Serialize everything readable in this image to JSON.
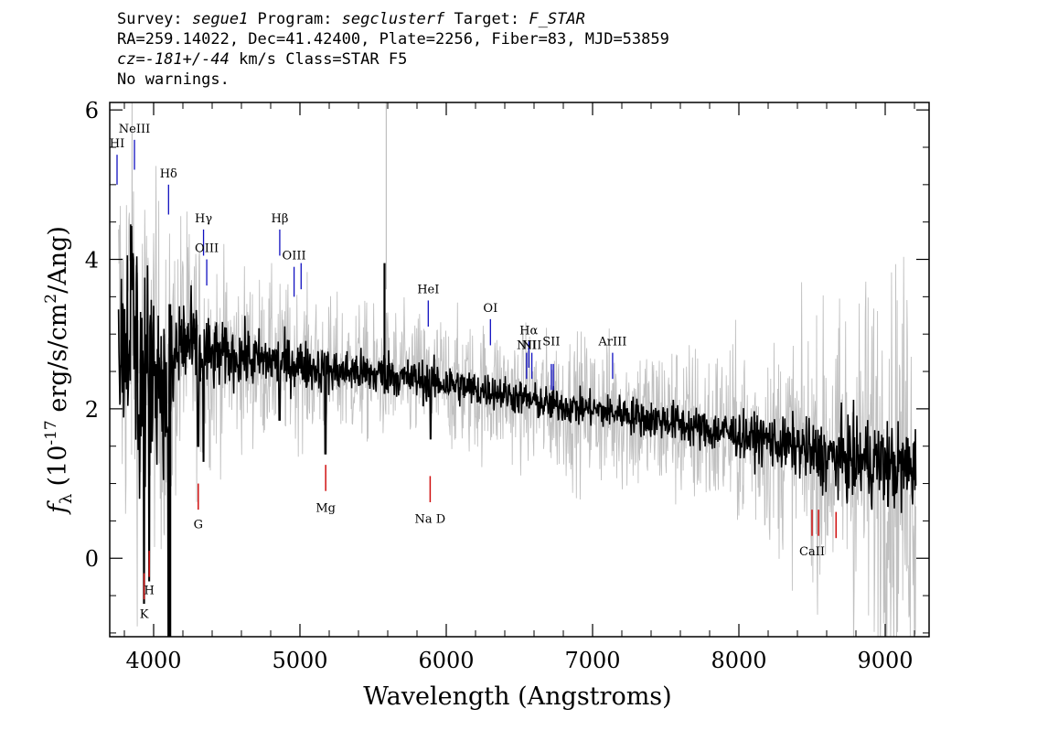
{
  "header": {
    "line1": {
      "survey_label": "Survey: ",
      "survey": "segue1",
      "program_label": " Program: ",
      "program": "segclusterf",
      "target_label": " Target: ",
      "target": "F_STAR"
    },
    "line2": "RA=259.14022, Dec=41.42400, Plate=2256, Fiber=83, MJD=53859",
    "line3": {
      "cz_label": "cz=",
      "cz_value": "-181+/-44",
      "cz_rest": " km/s Class=STAR F5"
    },
    "line4": "No warnings."
  },
  "chart_data": {
    "type": "line",
    "title": "",
    "xlabel": "Wavelength (Angstroms)",
    "ylabel": "f_λ (10^-17 erg/s/cm^2/Ang)",
    "ylabel_parts": {
      "symbol": "f",
      "subscript": "λ",
      "pre": "(10",
      "exp1": "-17",
      "mid": " erg/s/cm",
      "exp2": "2",
      "post": "/Ang)"
    },
    "xlim": [
      3700,
      9300
    ],
    "ylim": [
      -1.05,
      6.1
    ],
    "x_ticks": [
      4000,
      5000,
      6000,
      7000,
      8000,
      9000
    ],
    "x_tick_labels": [
      "4000",
      "5000",
      "6000",
      "7000",
      "8000",
      "9000"
    ],
    "y_ticks": [
      0,
      2,
      4,
      6
    ],
    "y_tick_labels": [
      "0",
      "2",
      "4",
      "6"
    ],
    "colors": {
      "flux": "#000000",
      "error_band": "#c0c0c0",
      "emission_marker": "#1010c0",
      "absorption_marker": "#d01010"
    },
    "series": [
      {
        "name": "flux",
        "x": [
          3800,
          3850,
          3900,
          3950,
          4000,
          4050,
          4100,
          4150,
          4200,
          4300,
          4400,
          4500,
          4600,
          4700,
          4800,
          4900,
          5000,
          5100,
          5200,
          5300,
          5400,
          5500,
          5600,
          5700,
          5800,
          5900,
          6000,
          6100,
          6200,
          6300,
          6400,
          6500,
          6600,
          6700,
          6800,
          6900,
          7000,
          7100,
          7200,
          7300,
          7400,
          7500,
          7600,
          7700,
          7800,
          7900,
          8000,
          8100,
          8200,
          8300,
          8400,
          8500,
          8600,
          8700,
          8800,
          8900,
          9000,
          9100,
          9200
        ],
        "y": [
          2.9,
          3.4,
          2.4,
          2.6,
          2.7,
          2.4,
          2.0,
          2.7,
          2.9,
          2.75,
          2.7,
          2.7,
          2.7,
          2.65,
          2.65,
          2.6,
          2.6,
          2.55,
          2.5,
          2.5,
          2.5,
          2.45,
          2.5,
          2.4,
          2.4,
          2.35,
          2.35,
          2.3,
          2.25,
          2.25,
          2.2,
          2.15,
          2.1,
          2.05,
          2.05,
          2.0,
          2.0,
          1.95,
          1.95,
          1.9,
          1.85,
          1.85,
          1.8,
          1.75,
          1.7,
          1.7,
          1.65,
          1.6,
          1.6,
          1.5,
          1.5,
          1.4,
          1.35,
          1.35,
          1.3,
          1.3,
          1.25,
          1.2,
          1.2
        ],
        "noise": [
          0.6,
          0.8,
          1.0,
          0.8,
          0.6,
          0.5,
          0.5,
          0.45,
          0.4,
          0.3,
          0.25,
          0.2,
          0.2,
          0.2,
          0.18,
          0.18,
          0.17,
          0.16,
          0.15,
          0.15,
          0.15,
          0.15,
          0.15,
          0.14,
          0.14,
          0.14,
          0.14,
          0.13,
          0.13,
          0.12,
          0.12,
          0.12,
          0.12,
          0.12,
          0.12,
          0.12,
          0.12,
          0.12,
          0.12,
          0.13,
          0.13,
          0.13,
          0.14,
          0.14,
          0.14,
          0.15,
          0.15,
          0.16,
          0.17,
          0.18,
          0.2,
          0.22,
          0.24,
          0.26,
          0.28,
          0.3,
          0.3,
          0.3,
          0.3
        ]
      },
      {
        "name": "error",
        "x": [
          3800,
          4000,
          4200,
          4500,
          5000,
          5500,
          6000,
          6500,
          7000,
          7500,
          8000,
          8500,
          8800,
          9000,
          9200
        ],
        "y": [
          1.5,
          1.2,
          0.9,
          0.6,
          0.5,
          0.45,
          0.45,
          0.45,
          0.5,
          0.55,
          0.6,
          0.8,
          1.2,
          1.3,
          1.4
        ]
      }
    ],
    "absorption_features": [
      {
        "x": 4101,
        "y": -1.05
      },
      {
        "x": 3934,
        "y": -0.6
      },
      {
        "x": 3969,
        "y": -0.3
      },
      {
        "x": 4304,
        "y": 1.5
      },
      {
        "x": 5175,
        "y": 1.4
      },
      {
        "x": 5893,
        "y": 1.6
      },
      {
        "x": 4340,
        "y": 1.3
      },
      {
        "x": 4861,
        "y": 1.85
      }
    ],
    "emission_lines": [
      {
        "label": "HI",
        "x": 3750,
        "y": 5.4,
        "ymin": 5.0,
        "label_y": 5.45
      },
      {
        "label": "NeIII",
        "x": 3869,
        "y": 5.6,
        "ymin": 5.2,
        "label_y": 5.65
      },
      {
        "label": "Hδ",
        "x": 4102,
        "y": 5.0,
        "ymin": 4.6,
        "label_y": 5.05
      },
      {
        "label": "Hγ",
        "x": 4341,
        "y": 4.4,
        "ymin": 4.05,
        "label_y": 4.45
      },
      {
        "label": "OIII",
        "x": 4363,
        "y": 4.0,
        "ymin": 3.65,
        "label_y": 4.05
      },
      {
        "label": "Hβ",
        "x": 4862,
        "y": 4.4,
        "ymin": 4.05,
        "label_y": 4.45
      },
      {
        "label": "OIII",
        "x": 4960,
        "y": 3.9,
        "ymin": 3.5,
        "label_y": 3.95
      },
      {
        "label": "",
        "x": 5008,
        "y": 3.95,
        "ymin": 3.6,
        "label_y": 3.95
      },
      {
        "label": "HeI",
        "x": 5877,
        "y": 3.45,
        "ymin": 3.1,
        "label_y": 3.5
      },
      {
        "label": "OI",
        "x": 6302,
        "y": 3.2,
        "ymin": 2.85,
        "label_y": 3.25
      },
      {
        "label": "NII",
        "x": 6549,
        "y": 2.75,
        "ymin": 2.4,
        "label_y": 2.75
      },
      {
        "label": "Hα",
        "x": 6564,
        "y": 2.9,
        "ymin": 2.55,
        "label_y": 2.95
      },
      {
        "label": "NII",
        "x": 6585,
        "y": 2.75,
        "ymin": 2.4,
        "label_y": 2.75
      },
      {
        "label": "SII",
        "x": 6718,
        "y": 2.6,
        "ymin": 2.25,
        "label_y": 2.8
      },
      {
        "label": "",
        "x": 6732,
        "y": 2.6,
        "ymin": 2.25,
        "label_y": 2.6
      },
      {
        "label": "ArIII",
        "x": 7137,
        "y": 2.75,
        "ymin": 2.4,
        "label_y": 2.8
      }
    ],
    "absorption_lines": [
      {
        "label": "K",
        "x": 3935,
        "y": -0.2,
        "ymin": -0.55,
        "label_y": -0.7
      },
      {
        "label": "H",
        "x": 3970,
        "y": 0.1,
        "ymin": -0.25,
        "label_y": -0.38
      },
      {
        "label": "G",
        "x": 4305,
        "y": 1.0,
        "ymin": 0.65,
        "label_y": 0.5
      },
      {
        "label": "Mg",
        "x": 5176,
        "y": 1.25,
        "ymin": 0.9,
        "label_y": 0.72
      },
      {
        "label": "Na D",
        "x": 5890,
        "y": 1.1,
        "ymin": 0.75,
        "label_y": 0.57
      },
      {
        "label": "CaII",
        "x": 8500,
        "y": 0.65,
        "ymin": 0.3,
        "label_y": 0.14
      },
      {
        "label": "",
        "x": 8544,
        "y": 0.65,
        "ymin": 0.3,
        "label_y": 0.14
      },
      {
        "label": "",
        "x": 8664,
        "y": 0.62,
        "ymin": 0.27,
        "label_y": 0.14
      }
    ]
  }
}
